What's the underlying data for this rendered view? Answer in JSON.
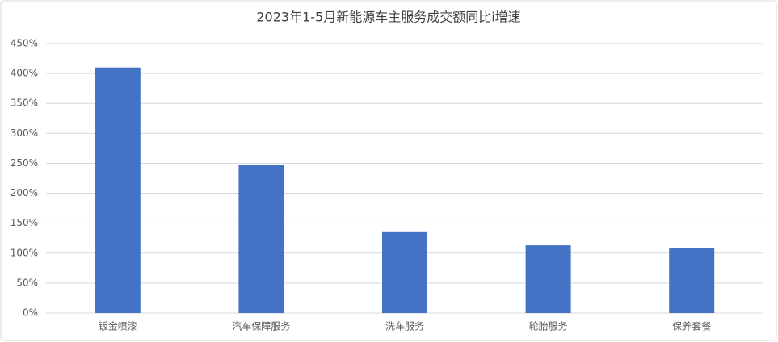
{
  "chart_data": {
    "type": "bar",
    "title": "2023年1-5月新能源车主服务成交额同比i增速",
    "categories": [
      "钣金喷漆",
      "汽车保障服务",
      "洗车服务",
      "轮胎服务",
      "保养套餐"
    ],
    "values": [
      410,
      247,
      135,
      113,
      108
    ],
    "color": "#4472c4",
    "ylim": [
      0,
      450
    ],
    "yticks": [
      {
        "value": 0,
        "label": "0%"
      },
      {
        "value": 50,
        "label": "50%"
      },
      {
        "value": 100,
        "label": "100%"
      },
      {
        "value": 150,
        "label": "150%"
      },
      {
        "value": 200,
        "label": "200%"
      },
      {
        "value": 250,
        "label": "250%"
      },
      {
        "value": 300,
        "label": "300%"
      },
      {
        "value": 350,
        "label": "350%"
      },
      {
        "value": 400,
        "label": "400%"
      },
      {
        "value": 450,
        "label": "450%"
      }
    ],
    "grid": true
  }
}
